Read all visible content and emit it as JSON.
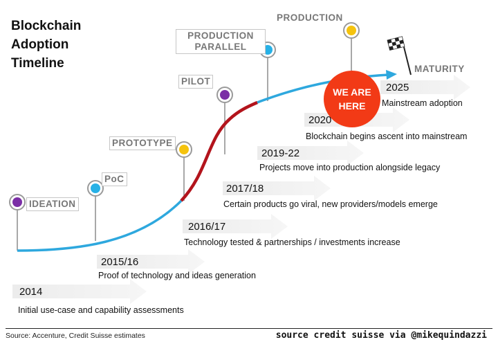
{
  "title": {
    "line1": "Blockchain",
    "line2": "Adoption",
    "line3": "Timeline"
  },
  "stages": {
    "ideation": "IDEATION",
    "poc": "PoC",
    "prototype": "PROTOTYPE",
    "pilot": "PILOT",
    "production_parallel_1": "PRODUCTION",
    "production_parallel_2": "PARALLEL",
    "production": "PRODUCTION",
    "maturity": "MATURITY"
  },
  "marker": {
    "line1": "WE ARE",
    "line2": "HERE"
  },
  "timeline": [
    {
      "year": "2014",
      "desc": "Initial use-case and capability assessments"
    },
    {
      "year": "2015/16",
      "desc": "Proof of technology and ideas generation"
    },
    {
      "year": "2016/17",
      "desc": "Technology tested & partnerships / investments increase"
    },
    {
      "year": "2017/18",
      "desc": "Certain products go viral, new providers/models emerge"
    },
    {
      "year": "2019-22",
      "desc": "Projects move into production alongside legacy"
    },
    {
      "year": "2020",
      "desc": "Blockchain begins ascent into mainstream"
    },
    {
      "year": "2025",
      "desc": "Mainstream adoption"
    }
  ],
  "footer": {
    "source_left": "Source: Accenture, Credit Suisse estimates",
    "source_right": "source credit suisse via @mikequindazzi"
  },
  "colors": {
    "curve_blue": "#2ea8de",
    "curve_red": "#b3141c",
    "dot_purple": "#7b2ea6",
    "dot_blue": "#27b1e6",
    "dot_yellow": "#f5c30e",
    "marker_red": "#f23a16",
    "arrow_gray": "#e6e6e6"
  }
}
